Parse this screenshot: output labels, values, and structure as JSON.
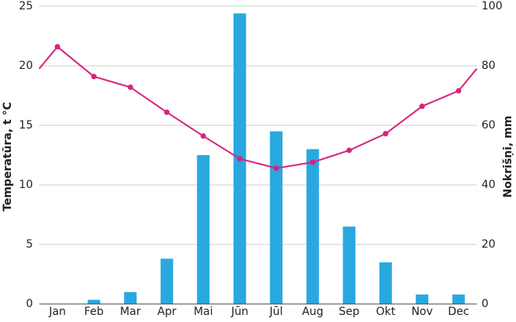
{
  "chart_data": {
    "type": "bar-line",
    "categories": [
      "Jan",
      "Feb",
      "Mar",
      "Apr",
      "Mai",
      "Jūn",
      "Jūl",
      "Aug",
      "Sep",
      "Okt",
      "Nov",
      "Dec"
    ],
    "y_label": "Temperatūra, t °C",
    "y2_label": "Nokrišņi, mm",
    "ylim": [
      0,
      25
    ],
    "yticks": [
      0,
      5,
      10,
      15,
      20,
      25
    ],
    "y2lim": [
      0,
      100
    ],
    "y2ticks": [
      0,
      20,
      40,
      60,
      80,
      100
    ],
    "grid": true,
    "series": [
      {
        "type": "bar",
        "axis": "y2",
        "color": "#29a8e0",
        "values": [
          0,
          1.4,
          4,
          15.2,
          50,
          97.6,
          58,
          52,
          26,
          14,
          3.2,
          3.2
        ]
      },
      {
        "type": "line",
        "axis": "y",
        "color": "#d6247f",
        "values": [
          21.6,
          19.1,
          18.2,
          16.1,
          14.1,
          12.2,
          11.4,
          11.9,
          12.9,
          14.3,
          16.6,
          17.9
        ]
      }
    ]
  }
}
